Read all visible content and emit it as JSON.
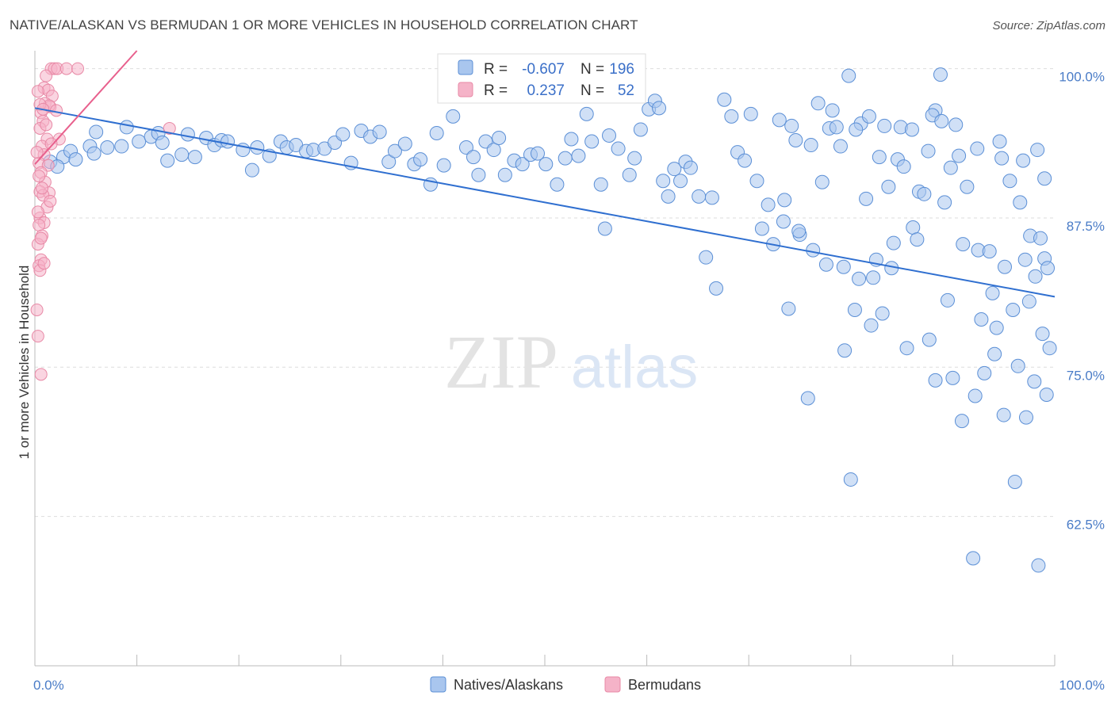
{
  "header": {
    "title": "NATIVE/ALASKAN VS BERMUDAN 1 OR MORE VEHICLES IN HOUSEHOLD CORRELATION CHART",
    "source": "Source: ZipAtlas.com"
  },
  "watermark": {
    "zip": "ZIP",
    "atlas": "atlas"
  },
  "colors": {
    "blue_fill": "#a9c6ee",
    "blue_stroke": "#5b8fd6",
    "blue_line": "#2f6fd0",
    "pink_fill": "#f5b3c8",
    "pink_stroke": "#e889a6",
    "pink_line": "#e8608d",
    "axis_text": "#4a7cc7"
  },
  "stats_box": {
    "rows": [
      {
        "r_label": "R =",
        "r_value": "-0.607",
        "n_label": "N =",
        "n_value": "196"
      },
      {
        "r_label": "R =",
        "r_value": "0.237",
        "n_label": "N =",
        "n_value": "52"
      }
    ]
  },
  "chart_data": {
    "type": "scatter",
    "title": "NATIVE/ALASKAN VS BERMUDAN 1 OR MORE VEHICLES IN HOUSEHOLD CORRELATION CHART",
    "xlabel": "",
    "ylabel": "1 or more Vehicles in Household",
    "xlim": [
      0,
      100
    ],
    "ylim": [
      50,
      101.5
    ],
    "y_ticks": [
      62.5,
      75.0,
      87.5,
      100.0
    ],
    "y_tick_labels": [
      "62.5%",
      "75.0%",
      "87.5%",
      "100.0%"
    ],
    "x_tick_labels": [
      "0.0%",
      "100.0%"
    ],
    "grid": true,
    "legend": {
      "placement": "bottom-center",
      "entries": [
        "Natives/Alaskans",
        "Bermudans"
      ]
    },
    "series": [
      {
        "name": "Natives/Alaskans",
        "r": -0.607,
        "n": 196,
        "trend": {
          "x": [
            0,
            100
          ],
          "y": [
            96.7,
            80.9
          ]
        },
        "points": [
          [
            1.5,
            92.2
          ],
          [
            2.8,
            92.6
          ],
          [
            3.5,
            93.1
          ],
          [
            2.2,
            91.8
          ],
          [
            4.0,
            92.4
          ],
          [
            5.4,
            93.5
          ],
          [
            6.0,
            94.7
          ],
          [
            5.8,
            92.9
          ],
          [
            7.1,
            93.4
          ],
          [
            8.5,
            93.5
          ],
          [
            9.0,
            95.1
          ],
          [
            10.2,
            93.9
          ],
          [
            11.4,
            94.3
          ],
          [
            12.1,
            94.6
          ],
          [
            12.5,
            93.8
          ],
          [
            13.0,
            92.3
          ],
          [
            14.4,
            92.8
          ],
          [
            15.0,
            94.5
          ],
          [
            15.7,
            92.6
          ],
          [
            16.8,
            94.2
          ],
          [
            17.6,
            93.6
          ],
          [
            18.3,
            94.0
          ],
          [
            18.9,
            93.9
          ],
          [
            20.4,
            93.2
          ],
          [
            21.3,
            91.5
          ],
          [
            21.8,
            93.4
          ],
          [
            23.0,
            92.7
          ],
          [
            24.1,
            93.9
          ],
          [
            24.7,
            93.4
          ],
          [
            25.6,
            93.6
          ],
          [
            26.6,
            93.1
          ],
          [
            27.3,
            93.2
          ],
          [
            28.4,
            93.3
          ],
          [
            29.4,
            93.8
          ],
          [
            30.2,
            94.5
          ],
          [
            31.0,
            92.1
          ],
          [
            32.0,
            94.8
          ],
          [
            32.9,
            94.3
          ],
          [
            33.8,
            94.7
          ],
          [
            34.7,
            92.2
          ],
          [
            35.3,
            93.1
          ],
          [
            36.3,
            93.7
          ],
          [
            37.2,
            92.0
          ],
          [
            37.8,
            92.4
          ],
          [
            38.8,
            90.3
          ],
          [
            39.4,
            94.6
          ],
          [
            40.1,
            91.9
          ],
          [
            41.0,
            96.0
          ],
          [
            42.3,
            93.4
          ],
          [
            43.0,
            92.6
          ],
          [
            43.5,
            91.1
          ],
          [
            44.2,
            93.9
          ],
          [
            45.0,
            93.2
          ],
          [
            45.5,
            94.2
          ],
          [
            46.1,
            91.1
          ],
          [
            47.0,
            92.3
          ],
          [
            47.8,
            92.0
          ],
          [
            48.6,
            92.8
          ],
          [
            49.3,
            92.9
          ],
          [
            50.1,
            92.0
          ],
          [
            51.2,
            90.3
          ],
          [
            52.0,
            92.5
          ],
          [
            52.6,
            94.1
          ],
          [
            53.3,
            92.7
          ],
          [
            54.1,
            96.2
          ],
          [
            54.6,
            93.9
          ],
          [
            55.5,
            90.3
          ],
          [
            55.9,
            86.6
          ],
          [
            56.3,
            94.4
          ],
          [
            57.2,
            93.3
          ],
          [
            58.3,
            91.1
          ],
          [
            58.8,
            92.5
          ],
          [
            59.4,
            94.9
          ],
          [
            60.2,
            96.6
          ],
          [
            60.8,
            97.3
          ],
          [
            61.2,
            96.7
          ],
          [
            61.6,
            90.6
          ],
          [
            62.1,
            89.3
          ],
          [
            62.7,
            91.6
          ],
          [
            63.3,
            90.6
          ],
          [
            63.8,
            92.2
          ],
          [
            64.3,
            91.7
          ],
          [
            65.1,
            89.3
          ],
          [
            65.8,
            84.2
          ],
          [
            66.4,
            89.2
          ],
          [
            66.8,
            81.6
          ],
          [
            67.6,
            97.4
          ],
          [
            68.3,
            96.0
          ],
          [
            68.9,
            93.0
          ],
          [
            69.6,
            92.3
          ],
          [
            70.2,
            96.2
          ],
          [
            70.8,
            90.6
          ],
          [
            71.3,
            86.6
          ],
          [
            71.9,
            88.6
          ],
          [
            72.4,
            85.3
          ],
          [
            73.0,
            95.7
          ],
          [
            73.5,
            89.0
          ],
          [
            73.9,
            79.9
          ],
          [
            74.6,
            94.0
          ],
          [
            75.0,
            86.1
          ],
          [
            75.8,
            72.4
          ],
          [
            76.8,
            97.1
          ],
          [
            77.2,
            90.5
          ],
          [
            77.9,
            95.0
          ],
          [
            78.6,
            95.1
          ],
          [
            79.0,
            93.5
          ],
          [
            79.4,
            76.4
          ],
          [
            80.0,
            65.6
          ],
          [
            80.4,
            79.8
          ],
          [
            81.0,
            95.4
          ],
          [
            81.5,
            89.1
          ],
          [
            82.0,
            78.5
          ],
          [
            82.5,
            84.0
          ],
          [
            83.1,
            79.5
          ],
          [
            83.7,
            90.1
          ],
          [
            84.2,
            85.4
          ],
          [
            84.9,
            95.1
          ],
          [
            85.5,
            76.6
          ],
          [
            86.1,
            86.7
          ],
          [
            86.7,
            89.7
          ],
          [
            87.2,
            89.5
          ],
          [
            87.7,
            77.3
          ],
          [
            88.3,
            96.5
          ],
          [
            88.8,
            99.5
          ],
          [
            89.2,
            88.8
          ],
          [
            89.8,
            91.7
          ],
          [
            90.3,
            95.3
          ],
          [
            90.9,
            70.5
          ],
          [
            91.4,
            90.1
          ],
          [
            92.0,
            59.0
          ],
          [
            92.5,
            84.8
          ],
          [
            93.1,
            74.5
          ],
          [
            93.6,
            84.7
          ],
          [
            94.1,
            76.1
          ],
          [
            94.6,
            93.9
          ],
          [
            95.1,
            83.4
          ],
          [
            95.6,
            90.6
          ],
          [
            96.1,
            65.4
          ],
          [
            96.6,
            88.8
          ],
          [
            97.1,
            84.0
          ],
          [
            97.6,
            86.0
          ],
          [
            98.1,
            82.6
          ],
          [
            98.6,
            85.8
          ],
          [
            99.0,
            84.1
          ],
          [
            99.3,
            83.3
          ],
          [
            80.5,
            94.9
          ],
          [
            81.8,
            96.0
          ],
          [
            83.3,
            95.2
          ],
          [
            84.6,
            92.4
          ],
          [
            86.0,
            94.9
          ],
          [
            88.0,
            96.1
          ],
          [
            74.2,
            95.2
          ],
          [
            76.1,
            93.6
          ],
          [
            78.2,
            96.5
          ],
          [
            79.8,
            99.4
          ],
          [
            82.8,
            92.6
          ],
          [
            85.2,
            91.8
          ],
          [
            87.6,
            93.1
          ],
          [
            88.9,
            95.6
          ],
          [
            90.6,
            92.7
          ],
          [
            92.4,
            93.3
          ],
          [
            94.8,
            92.5
          ],
          [
            96.9,
            92.3
          ],
          [
            98.3,
            93.2
          ],
          [
            99.0,
            90.8
          ],
          [
            91.0,
            85.3
          ],
          [
            93.9,
            81.2
          ],
          [
            95.9,
            79.8
          ],
          [
            97.5,
            80.5
          ],
          [
            98.8,
            77.8
          ],
          [
            99.5,
            76.6
          ],
          [
            89.5,
            80.6
          ],
          [
            92.8,
            79.0
          ],
          [
            94.3,
            78.3
          ],
          [
            96.4,
            75.1
          ],
          [
            98.0,
            73.8
          ],
          [
            99.2,
            72.7
          ],
          [
            88.3,
            73.9
          ],
          [
            90.0,
            74.1
          ],
          [
            92.2,
            72.6
          ],
          [
            95.0,
            71.0
          ],
          [
            97.2,
            70.8
          ],
          [
            98.4,
            58.4
          ],
          [
            86.5,
            85.7
          ],
          [
            84.0,
            83.3
          ],
          [
            82.2,
            82.5
          ],
          [
            80.8,
            82.4
          ],
          [
            79.3,
            83.4
          ],
          [
            77.6,
            83.6
          ],
          [
            76.3,
            84.8
          ],
          [
            74.9,
            86.4
          ],
          [
            73.4,
            87.2
          ]
        ]
      },
      {
        "name": "Bermudans",
        "r": 0.237,
        "n": 52,
        "trend": {
          "x": [
            0,
            10
          ],
          "y": [
            92.0,
            101.5
          ]
        },
        "points": [
          [
            1.6,
            100.0
          ],
          [
            1.9,
            100.0
          ],
          [
            2.2,
            100.0
          ],
          [
            3.1,
            100.0
          ],
          [
            4.2,
            100.0
          ],
          [
            1.1,
            99.4
          ],
          [
            0.9,
            98.4
          ],
          [
            1.3,
            98.2
          ],
          [
            1.7,
            97.7
          ],
          [
            1.0,
            97.1
          ],
          [
            1.5,
            96.8
          ],
          [
            0.6,
            96.3
          ],
          [
            0.8,
            95.6
          ],
          [
            1.4,
            96.9
          ],
          [
            2.1,
            96.5
          ],
          [
            0.5,
            95.0
          ],
          [
            1.2,
            94.1
          ],
          [
            2.4,
            94.1
          ],
          [
            0.7,
            93.5
          ],
          [
            1.6,
            93.7
          ],
          [
            0.9,
            92.8
          ],
          [
            0.4,
            92.1
          ],
          [
            1.3,
            91.9
          ],
          [
            0.6,
            91.3
          ],
          [
            1.0,
            90.5
          ],
          [
            0.5,
            89.7
          ],
          [
            1.4,
            89.6
          ],
          [
            0.8,
            89.4
          ],
          [
            1.2,
            88.4
          ],
          [
            0.5,
            87.5
          ],
          [
            0.9,
            87.1
          ],
          [
            0.4,
            86.9
          ],
          [
            0.7,
            86.0
          ],
          [
            0.3,
            85.3
          ],
          [
            0.6,
            84.0
          ],
          [
            0.4,
            83.5
          ],
          [
            0.5,
            83.1
          ],
          [
            0.2,
            79.8
          ],
          [
            0.3,
            77.6
          ],
          [
            0.6,
            74.4
          ],
          [
            13.2,
            95.0
          ],
          [
            0.3,
            98.1
          ],
          [
            0.5,
            97.0
          ],
          [
            0.8,
            96.6
          ],
          [
            1.1,
            95.3
          ],
          [
            0.2,
            93.0
          ],
          [
            0.4,
            91.0
          ],
          [
            0.7,
            90.0
          ],
          [
            1.5,
            88.9
          ],
          [
            0.3,
            88.0
          ],
          [
            0.6,
            85.8
          ],
          [
            0.9,
            83.7
          ]
        ]
      }
    ]
  },
  "legend_labels": {
    "series1": "Natives/Alaskans",
    "series2": "Bermudans"
  }
}
